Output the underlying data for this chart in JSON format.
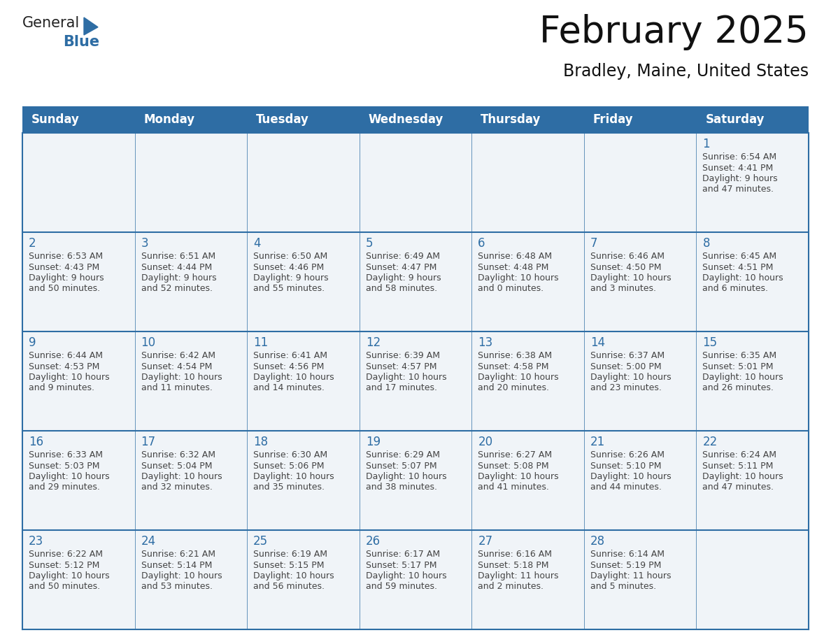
{
  "title": "February 2025",
  "subtitle": "Bradley, Maine, United States",
  "header_color": "#2E6DA4",
  "header_text_color": "#FFFFFF",
  "cell_border_color": "#2E6DA4",
  "day_number_color": "#2E6DA4",
  "cell_text_color": "#444444",
  "cell_bg_color": "#F0F4F8",
  "background_color": "#FFFFFF",
  "days_of_week": [
    "Sunday",
    "Monday",
    "Tuesday",
    "Wednesday",
    "Thursday",
    "Friday",
    "Saturday"
  ],
  "weeks": [
    [
      null,
      null,
      null,
      null,
      null,
      null,
      1
    ],
    [
      2,
      3,
      4,
      5,
      6,
      7,
      8
    ],
    [
      9,
      10,
      11,
      12,
      13,
      14,
      15
    ],
    [
      16,
      17,
      18,
      19,
      20,
      21,
      22
    ],
    [
      23,
      24,
      25,
      26,
      27,
      28,
      null
    ]
  ],
  "cell_data": {
    "1": {
      "rise": "6:54 AM",
      "set": "4:41 PM",
      "dl1": "Daylight: 9 hours",
      "dl2": "and 47 minutes."
    },
    "2": {
      "rise": "6:53 AM",
      "set": "4:43 PM",
      "dl1": "Daylight: 9 hours",
      "dl2": "and 50 minutes."
    },
    "3": {
      "rise": "6:51 AM",
      "set": "4:44 PM",
      "dl1": "Daylight: 9 hours",
      "dl2": "and 52 minutes."
    },
    "4": {
      "rise": "6:50 AM",
      "set": "4:46 PM",
      "dl1": "Daylight: 9 hours",
      "dl2": "and 55 minutes."
    },
    "5": {
      "rise": "6:49 AM",
      "set": "4:47 PM",
      "dl1": "Daylight: 9 hours",
      "dl2": "and 58 minutes."
    },
    "6": {
      "rise": "6:48 AM",
      "set": "4:48 PM",
      "dl1": "Daylight: 10 hours",
      "dl2": "and 0 minutes."
    },
    "7": {
      "rise": "6:46 AM",
      "set": "4:50 PM",
      "dl1": "Daylight: 10 hours",
      "dl2": "and 3 minutes."
    },
    "8": {
      "rise": "6:45 AM",
      "set": "4:51 PM",
      "dl1": "Daylight: 10 hours",
      "dl2": "and 6 minutes."
    },
    "9": {
      "rise": "6:44 AM",
      "set": "4:53 PM",
      "dl1": "Daylight: 10 hours",
      "dl2": "and 9 minutes."
    },
    "10": {
      "rise": "6:42 AM",
      "set": "4:54 PM",
      "dl1": "Daylight: 10 hours",
      "dl2": "and 11 minutes."
    },
    "11": {
      "rise": "6:41 AM",
      "set": "4:56 PM",
      "dl1": "Daylight: 10 hours",
      "dl2": "and 14 minutes."
    },
    "12": {
      "rise": "6:39 AM",
      "set": "4:57 PM",
      "dl1": "Daylight: 10 hours",
      "dl2": "and 17 minutes."
    },
    "13": {
      "rise": "6:38 AM",
      "set": "4:58 PM",
      "dl1": "Daylight: 10 hours",
      "dl2": "and 20 minutes."
    },
    "14": {
      "rise": "6:37 AM",
      "set": "5:00 PM",
      "dl1": "Daylight: 10 hours",
      "dl2": "and 23 minutes."
    },
    "15": {
      "rise": "6:35 AM",
      "set": "5:01 PM",
      "dl1": "Daylight: 10 hours",
      "dl2": "and 26 minutes."
    },
    "16": {
      "rise": "6:33 AM",
      "set": "5:03 PM",
      "dl1": "Daylight: 10 hours",
      "dl2": "and 29 minutes."
    },
    "17": {
      "rise": "6:32 AM",
      "set": "5:04 PM",
      "dl1": "Daylight: 10 hours",
      "dl2": "and 32 minutes."
    },
    "18": {
      "rise": "6:30 AM",
      "set": "5:06 PM",
      "dl1": "Daylight: 10 hours",
      "dl2": "and 35 minutes."
    },
    "19": {
      "rise": "6:29 AM",
      "set": "5:07 PM",
      "dl1": "Daylight: 10 hours",
      "dl2": "and 38 minutes."
    },
    "20": {
      "rise": "6:27 AM",
      "set": "5:08 PM",
      "dl1": "Daylight: 10 hours",
      "dl2": "and 41 minutes."
    },
    "21": {
      "rise": "6:26 AM",
      "set": "5:10 PM",
      "dl1": "Daylight: 10 hours",
      "dl2": "and 44 minutes."
    },
    "22": {
      "rise": "6:24 AM",
      "set": "5:11 PM",
      "dl1": "Daylight: 10 hours",
      "dl2": "and 47 minutes."
    },
    "23": {
      "rise": "6:22 AM",
      "set": "5:12 PM",
      "dl1": "Daylight: 10 hours",
      "dl2": "and 50 minutes."
    },
    "24": {
      "rise": "6:21 AM",
      "set": "5:14 PM",
      "dl1": "Daylight: 10 hours",
      "dl2": "and 53 minutes."
    },
    "25": {
      "rise": "6:19 AM",
      "set": "5:15 PM",
      "dl1": "Daylight: 10 hours",
      "dl2": "and 56 minutes."
    },
    "26": {
      "rise": "6:17 AM",
      "set": "5:17 PM",
      "dl1": "Daylight: 10 hours",
      "dl2": "and 59 minutes."
    },
    "27": {
      "rise": "6:16 AM",
      "set": "5:18 PM",
      "dl1": "Daylight: 11 hours",
      "dl2": "and 2 minutes."
    },
    "28": {
      "rise": "6:14 AM",
      "set": "5:19 PM",
      "dl1": "Daylight: 11 hours",
      "dl2": "and 5 minutes."
    }
  },
  "title_fontsize": 38,
  "subtitle_fontsize": 17,
  "header_fontsize": 12,
  "day_num_fontsize": 12,
  "cell_fontsize": 9
}
